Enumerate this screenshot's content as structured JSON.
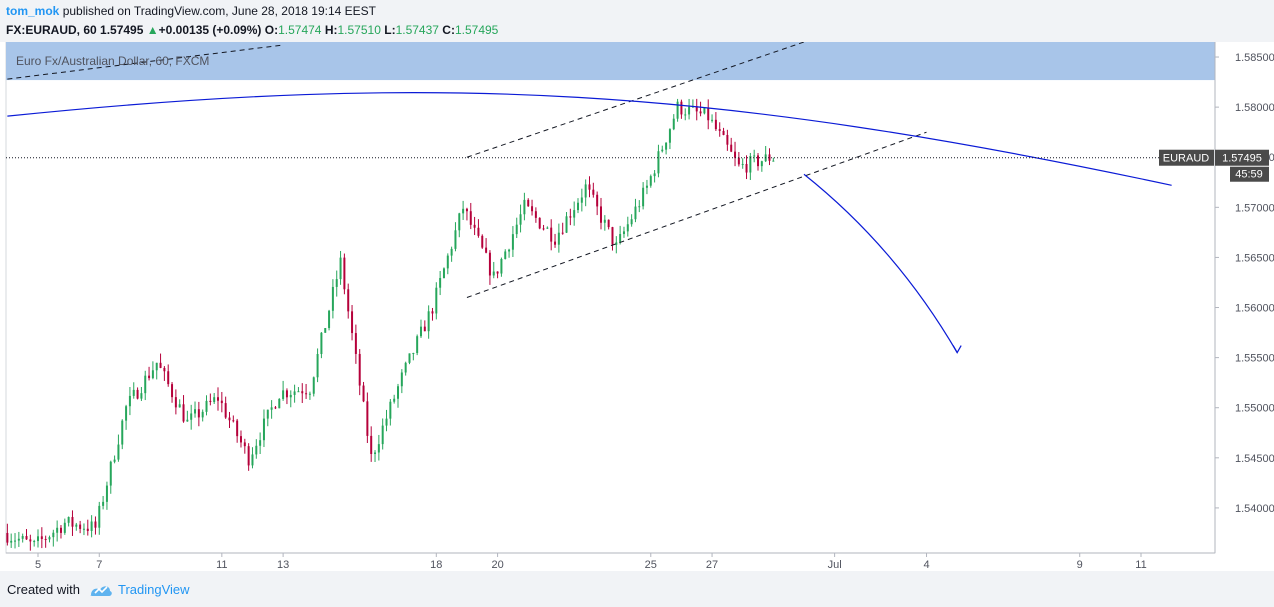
{
  "header": {
    "author": "tom_mok",
    "published_text": "published on TradingView.com, June 28, 2018 19:14 EEST",
    "symbol": "FX:EURAUD, 60",
    "last": "1.57495",
    "change": "+0.00135 (+0.09%)",
    "o_label": "O:",
    "o_value": "1.57474",
    "h_label": "H:",
    "h_value": "1.57510",
    "l_label": "L:",
    "l_value": "1.57437",
    "c_label": "C:",
    "c_value": "1.57495"
  },
  "footer": {
    "created_label": "Created with",
    "brand": "TradingView"
  },
  "colors": {
    "up": "#26a65b",
    "down": "#b5003a",
    "drawing": "#0b1bd6",
    "zone": "#a8c5e9",
    "axis_text": "#50535e"
  },
  "chart_data": {
    "type": "candlestick",
    "title": "Euro Fx/Australian Dollar, 60, FXCM",
    "symbol_tag": "EURAUD",
    "last_price": 1.57495,
    "last_price_label": "1.57495",
    "countdown": "45:59",
    "timeframe": "60",
    "ylim": [
      1.5355,
      1.5865
    ],
    "y_ticks": [
      1.54,
      1.545,
      1.55,
      1.555,
      1.56,
      1.565,
      1.57,
      1.575,
      1.58,
      1.585
    ],
    "y_tick_labels": [
      "1.54000",
      "1.54500",
      "1.55000",
      "1.55500",
      "1.56000",
      "1.56500",
      "1.57000",
      "1.57500",
      "1.58000",
      "1.58500"
    ],
    "x_tick_labels": [
      {
        "date": "2018-06-05",
        "label": "5"
      },
      {
        "date": "2018-06-07",
        "label": "7"
      },
      {
        "date": "2018-06-11",
        "label": "11"
      },
      {
        "date": "2018-06-13",
        "label": "13"
      },
      {
        "date": "2018-06-18",
        "label": "18"
      },
      {
        "date": "2018-06-20",
        "label": "20"
      },
      {
        "date": "2018-06-25",
        "label": "25"
      },
      {
        "date": "2018-06-27",
        "label": "27"
      },
      {
        "date": "2018-07-01",
        "label": "Jul"
      },
      {
        "date": "2018-07-04",
        "label": "4"
      },
      {
        "date": "2018-07-09",
        "label": "9"
      },
      {
        "date": "2018-07-11",
        "label": "11"
      }
    ],
    "price_path": [
      {
        "date": "2018-06-04",
        "price": 1.5375
      },
      {
        "date": "2018-06-05",
        "price": 1.5362
      },
      {
        "date": "2018-06-06",
        "price": 1.5385
      },
      {
        "date": "2018-06-07",
        "price": 1.538
      },
      {
        "date": "2018-06-08",
        "price": 1.55
      },
      {
        "date": "2018-06-09",
        "price": 1.5545
      },
      {
        "date": "2018-06-10",
        "price": 1.5485
      },
      {
        "date": "2018-06-11",
        "price": 1.551
      },
      {
        "date": "2018-06-12",
        "price": 1.545
      },
      {
        "date": "2018-06-13",
        "price": 1.5515
      },
      {
        "date": "2018-06-14",
        "price": 1.552
      },
      {
        "date": "2018-06-15",
        "price": 1.5645
      },
      {
        "date": "2018-06-16",
        "price": 1.545
      },
      {
        "date": "2018-06-17",
        "price": 1.553
      },
      {
        "date": "2018-06-18",
        "price": 1.56
      },
      {
        "date": "2018-06-19",
        "price": 1.57
      },
      {
        "date": "2018-06-20",
        "price": 1.563
      },
      {
        "date": "2018-06-21",
        "price": 1.57
      },
      {
        "date": "2018-06-22",
        "price": 1.567
      },
      {
        "date": "2018-06-23",
        "price": 1.572
      },
      {
        "date": "2018-06-24",
        "price": 1.566
      },
      {
        "date": "2018-06-25",
        "price": 1.572
      },
      {
        "date": "2018-06-26",
        "price": 1.58
      },
      {
        "date": "2018-06-27",
        "price": 1.579
      },
      {
        "date": "2018-06-28",
        "price": 1.574
      },
      {
        "date": "2018-06-29",
        "price": 1.57495
      }
    ],
    "resistance_zone": [
      1.5827,
      1.5865
    ],
    "channel_upper": [
      {
        "date": "2018-06-19",
        "price": 1.575
      },
      {
        "date": "2018-06-30",
        "price": 1.5865
      }
    ],
    "channel_lower": [
      {
        "date": "2018-06-19",
        "price": 1.561
      },
      {
        "date": "2018-07-04",
        "price": 1.5775
      }
    ],
    "upper_left_line": [
      {
        "date": "2018-06-04",
        "price": 1.5828
      },
      {
        "date": "2018-06-13",
        "price": 1.5862
      }
    ],
    "resistance_curve": [
      {
        "date": "2018-06-04",
        "price": 1.5791
      },
      {
        "date": "2018-06-18",
        "price": 1.5835
      },
      {
        "date": "2018-06-27",
        "price": 1.582
      },
      {
        "date": "2018-07-12",
        "price": 1.5722
      }
    ],
    "projection_arrow": [
      {
        "date": "2018-06-30",
        "price": 1.5733
      },
      {
        "date": "2018-07-03",
        "price": 1.566
      },
      {
        "date": "2018-07-05",
        "price": 1.5555
      }
    ]
  }
}
